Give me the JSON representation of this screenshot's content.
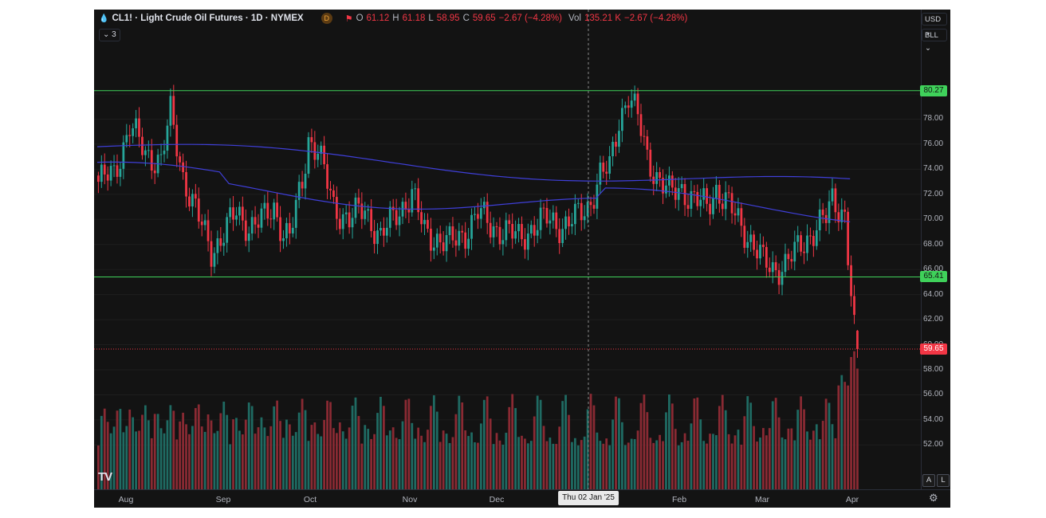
{
  "legend": {
    "symbol": "CL1! · Light Crude Oil Futures · 1D · NYMEX",
    "badge": "D",
    "open_label": "O",
    "open": "61.12",
    "high_label": "H",
    "high": "61.18",
    "low_label": "L",
    "low": "58.95",
    "close_label": "C",
    "close": "59.65",
    "change": "−2.67 (−4.28%)",
    "vol_label": "Vol",
    "vol": "135.21 K",
    "vol_change": "−2.67 (−4.28%)"
  },
  "indicators_toggle": "3",
  "currency_select": "USD",
  "unit_select": "BLL",
  "price_axis_labels": [
    "80.00",
    "78.00",
    "76.00",
    "74.00",
    "72.00",
    "70.00",
    "68.00",
    "66.00",
    "64.00",
    "62.00",
    "60.00",
    "58.00",
    "56.00",
    "54.00",
    "52.00"
  ],
  "horizontal_lines": {
    "upper": "80.27",
    "lower": "65.41"
  },
  "last_price": "59.65",
  "time_axis_labels": [
    "Aug",
    "Sep",
    "Oct",
    "Nov",
    "Dec",
    "Feb",
    "Mar",
    "Apr"
  ],
  "crosshair_label": "Thu 02 Jan '25",
  "buttons": {
    "auto": "A",
    "log": "L"
  },
  "logo_text": "TV",
  "colors": {
    "up": "#26a69a",
    "down": "#f23645",
    "ma": "#3f3fd9",
    "hline": "#3fd15a",
    "background": "#131313"
  },
  "chart_data": {
    "type": "candlestick",
    "ylim": [
      57.5,
      81.5
    ],
    "approx_close_path": [
      [
        0,
        73.0
      ],
      [
        5,
        73.6
      ],
      [
        10,
        77.5
      ],
      [
        15,
        75.2
      ],
      [
        20,
        74.7
      ],
      [
        23,
        78.4
      ],
      [
        27,
        73.5
      ],
      [
        32,
        70.0
      ],
      [
        36,
        67.5
      ],
      [
        39,
        68.5
      ],
      [
        44,
        70.5
      ],
      [
        48,
        69.5
      ],
      [
        53,
        70.0
      ],
      [
        56,
        71.0
      ],
      [
        59,
        69.0
      ],
      [
        61,
        68.5
      ],
      [
        65,
        73.0
      ],
      [
        67,
        76.5
      ],
      [
        70,
        75.5
      ],
      [
        75,
        71.0
      ],
      [
        80,
        70.0
      ],
      [
        85,
        70.8
      ],
      [
        90,
        68.5
      ],
      [
        95,
        70.5
      ],
      [
        100,
        72.0
      ],
      [
        104,
        69.0
      ],
      [
        108,
        68.5
      ],
      [
        112,
        68.0
      ],
      [
        117,
        69.0
      ],
      [
        121,
        70.5
      ],
      [
        125,
        69.5
      ],
      [
        130,
        69.0
      ],
      [
        134,
        68.5
      ],
      [
        139,
        69.5
      ],
      [
        143,
        70.0
      ],
      [
        148,
        69.5
      ],
      [
        152,
        70.0
      ],
      [
        156,
        71.0
      ],
      [
        160,
        73.5
      ],
      [
        163,
        74.0
      ],
      [
        166,
        78.0
      ],
      [
        169,
        80.0
      ],
      [
        172,
        78.0
      ],
      [
        175,
        75.0
      ],
      [
        178,
        73.5
      ],
      [
        182,
        72.0
      ],
      [
        186,
        72.5
      ],
      [
        190,
        71.5
      ],
      [
        194,
        71.0
      ],
      [
        197,
        72.5
      ],
      [
        201,
        71.0
      ],
      [
        205,
        69.5
      ],
      [
        209,
        68.0
      ],
      [
        212,
        66.5
      ],
      [
        215,
        66.0
      ],
      [
        219,
        66.5
      ],
      [
        223,
        67.5
      ],
      [
        226,
        68.5
      ],
      [
        229,
        69.5
      ],
      [
        232,
        70.0
      ],
      [
        234,
        71.5
      ],
      [
        236,
        71.0
      ],
      [
        238,
        70.5
      ],
      [
        240,
        64.0
      ],
      [
        241,
        61.0
      ],
      [
        242,
        59.65
      ]
    ],
    "moving_averages": [
      {
        "start": 75.8,
        "end": 72.5
      },
      {
        "start": 73.8,
        "end": 70.6
      }
    ],
    "last": {
      "open": 61.12,
      "high": 61.18,
      "low": 58.95,
      "close": 59.65
    }
  }
}
